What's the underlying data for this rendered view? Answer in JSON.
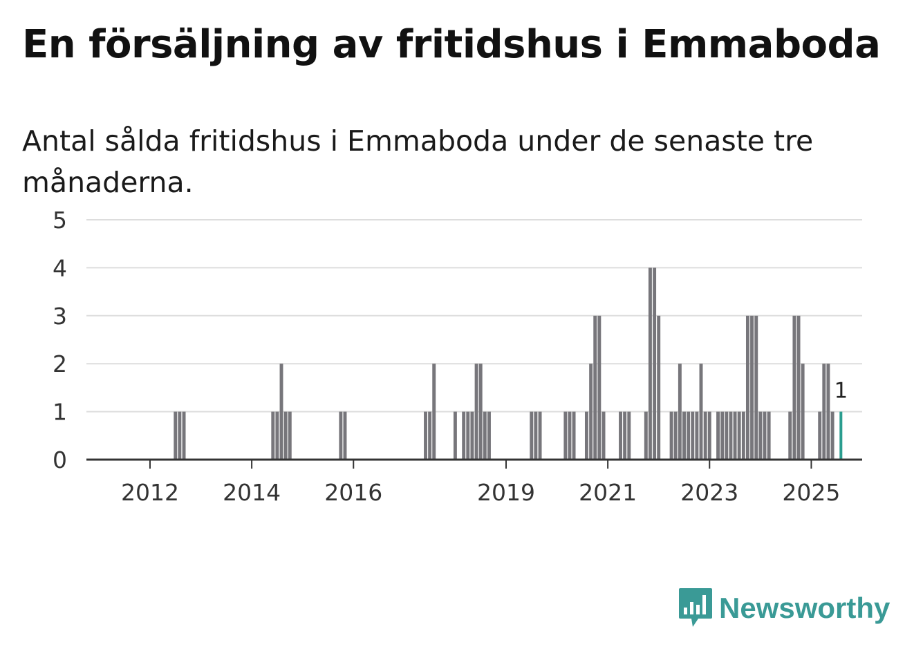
{
  "title": "En försäljning av fritidshus i Emmaboda",
  "subtitle": "Antal sålda fritidshus i Emmaboda under de senaste tre månaderna.",
  "brand": {
    "name": "Newsworthy",
    "color": "#3a9a96",
    "icon": "newsworthy-logo-icon"
  },
  "colors": {
    "bar": "#77767b",
    "highlight": "#2a9d8f",
    "grid": "#dddddd",
    "axis": "#333333"
  },
  "chart_data": {
    "type": "bar",
    "title": "En försäljning av fritidshus i Emmaboda",
    "subtitle": "Antal sålda fritidshus i Emmaboda under de senaste tre månaderna.",
    "xlabel": "",
    "ylabel": "",
    "ylim": [
      0,
      5
    ],
    "yticks": [
      0,
      1,
      2,
      3,
      4,
      5
    ],
    "xticks": [
      {
        "label": "2012",
        "value": 2012.0
      },
      {
        "label": "2014",
        "value": 2014.0
      },
      {
        "label": "2016",
        "value": 2016.0
      },
      {
        "label": "2019",
        "value": 2019.0
      },
      {
        "label": "2021",
        "value": 2021.0
      },
      {
        "label": "2023",
        "value": 2023.0
      },
      {
        "label": "2025",
        "value": 2025.0
      }
    ],
    "xlim": [
      2010.75,
      2026.0
    ],
    "bar_width_years": 0.0833,
    "points": [
      {
        "x": 2012.5,
        "y": 1
      },
      {
        "x": 2012.583,
        "y": 1
      },
      {
        "x": 2012.667,
        "y": 1
      },
      {
        "x": 2014.417,
        "y": 1
      },
      {
        "x": 2014.5,
        "y": 1
      },
      {
        "x": 2014.583,
        "y": 2
      },
      {
        "x": 2014.667,
        "y": 1
      },
      {
        "x": 2014.75,
        "y": 1
      },
      {
        "x": 2015.75,
        "y": 1
      },
      {
        "x": 2015.833,
        "y": 1
      },
      {
        "x": 2017.417,
        "y": 1
      },
      {
        "x": 2017.5,
        "y": 1
      },
      {
        "x": 2017.583,
        "y": 2
      },
      {
        "x": 2018.0,
        "y": 1
      },
      {
        "x": 2018.167,
        "y": 1
      },
      {
        "x": 2018.25,
        "y": 1
      },
      {
        "x": 2018.333,
        "y": 1
      },
      {
        "x": 2018.417,
        "y": 2
      },
      {
        "x": 2018.5,
        "y": 2
      },
      {
        "x": 2018.583,
        "y": 1
      },
      {
        "x": 2018.667,
        "y": 1
      },
      {
        "x": 2019.5,
        "y": 1
      },
      {
        "x": 2019.583,
        "y": 1
      },
      {
        "x": 2019.667,
        "y": 1
      },
      {
        "x": 2020.167,
        "y": 1
      },
      {
        "x": 2020.25,
        "y": 1
      },
      {
        "x": 2020.333,
        "y": 1
      },
      {
        "x": 2020.583,
        "y": 1
      },
      {
        "x": 2020.667,
        "y": 2
      },
      {
        "x": 2020.75,
        "y": 3
      },
      {
        "x": 2020.833,
        "y": 3
      },
      {
        "x": 2020.917,
        "y": 1
      },
      {
        "x": 2021.25,
        "y": 1
      },
      {
        "x": 2021.333,
        "y": 1
      },
      {
        "x": 2021.417,
        "y": 1
      },
      {
        "x": 2021.75,
        "y": 1
      },
      {
        "x": 2021.833,
        "y": 4
      },
      {
        "x": 2021.917,
        "y": 4
      },
      {
        "x": 2022.0,
        "y": 3
      },
      {
        "x": 2022.25,
        "y": 1
      },
      {
        "x": 2022.333,
        "y": 1
      },
      {
        "x": 2022.417,
        "y": 2
      },
      {
        "x": 2022.5,
        "y": 1
      },
      {
        "x": 2022.583,
        "y": 1
      },
      {
        "x": 2022.667,
        "y": 1
      },
      {
        "x": 2022.75,
        "y": 1
      },
      {
        "x": 2022.833,
        "y": 2
      },
      {
        "x": 2022.917,
        "y": 1
      },
      {
        "x": 2023.0,
        "y": 1
      },
      {
        "x": 2023.167,
        "y": 1
      },
      {
        "x": 2023.25,
        "y": 1
      },
      {
        "x": 2023.333,
        "y": 1
      },
      {
        "x": 2023.417,
        "y": 1
      },
      {
        "x": 2023.5,
        "y": 1
      },
      {
        "x": 2023.583,
        "y": 1
      },
      {
        "x": 2023.667,
        "y": 1
      },
      {
        "x": 2023.75,
        "y": 3
      },
      {
        "x": 2023.833,
        "y": 3
      },
      {
        "x": 2023.917,
        "y": 3
      },
      {
        "x": 2024.0,
        "y": 1
      },
      {
        "x": 2024.083,
        "y": 1
      },
      {
        "x": 2024.167,
        "y": 1
      },
      {
        "x": 2024.583,
        "y": 1
      },
      {
        "x": 2024.667,
        "y": 3
      },
      {
        "x": 2024.75,
        "y": 3
      },
      {
        "x": 2024.833,
        "y": 2
      },
      {
        "x": 2025.167,
        "y": 1
      },
      {
        "x": 2025.25,
        "y": 2
      },
      {
        "x": 2025.333,
        "y": 2
      },
      {
        "x": 2025.417,
        "y": 1
      },
      {
        "x": 2025.583,
        "y": 1,
        "highlight": true
      }
    ],
    "annotations": [
      {
        "x": 2025.583,
        "y": 1,
        "label": "1"
      }
    ]
  }
}
